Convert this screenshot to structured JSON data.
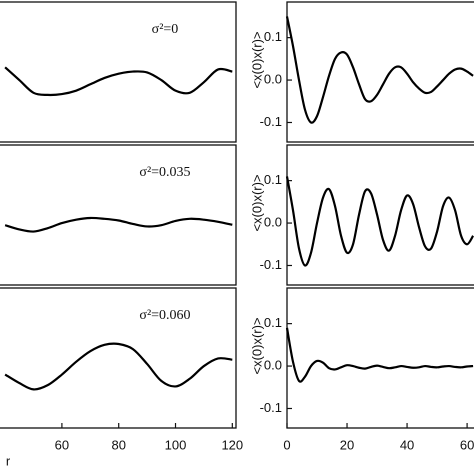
{
  "chart_data": [
    {
      "type": "line",
      "annotation": "σ²=0",
      "color": "#000000",
      "x": [
        40,
        45,
        50,
        55,
        60,
        65,
        70,
        75,
        80,
        85,
        90,
        95,
        100,
        105,
        110,
        115,
        120
      ],
      "values": [
        0.03,
        0.0,
        -0.03,
        -0.035,
        -0.033,
        -0.025,
        -0.01,
        0.005,
        0.015,
        0.02,
        0.018,
        0.0,
        -0.025,
        -0.03,
        -0.005,
        0.025,
        0.02
      ],
      "xlim": [
        38.2,
        121.3
      ],
      "ylim": [
        -0.146,
        0.184
      ]
    },
    {
      "type": "line",
      "ylabel": "<x(0)x(r)>",
      "color": "#000000",
      "x": [
        0,
        2,
        4,
        6,
        8,
        10,
        12,
        14,
        16,
        18,
        20,
        22,
        24,
        26,
        28,
        30,
        32,
        34,
        36,
        38,
        40,
        42,
        44,
        46,
        48,
        50,
        52,
        54,
        56,
        58,
        60,
        62
      ],
      "values": [
        0.15,
        0.08,
        0.0,
        -0.07,
        -0.1,
        -0.085,
        -0.04,
        0.01,
        0.05,
        0.065,
        0.06,
        0.03,
        -0.01,
        -0.045,
        -0.05,
        -0.035,
        -0.01,
        0.015,
        0.03,
        0.03,
        0.015,
        -0.005,
        -0.02,
        -0.03,
        -0.028,
        -0.015,
        0.0,
        0.015,
        0.025,
        0.027,
        0.02,
        0.01
      ],
      "xlim": [
        0,
        62.3
      ],
      "ylim": [
        -0.146,
        0.184
      ],
      "yticks": [
        0.1,
        {
          "value": 0,
          "label": "0.0"
        },
        -0.1
      ]
    },
    {
      "type": "line",
      "annotation": "σ²=0.035",
      "color": "#000000",
      "x": [
        40,
        45,
        50,
        55,
        60,
        65,
        70,
        75,
        80,
        85,
        90,
        95,
        100,
        105,
        110,
        115,
        120
      ],
      "values": [
        -0.005,
        -0.015,
        -0.02,
        -0.012,
        0.0,
        0.008,
        0.012,
        0.01,
        0.006,
        -0.002,
        -0.008,
        -0.005,
        0.005,
        0.01,
        0.008,
        0.003,
        -0.004
      ],
      "xlim": [
        38.2,
        121.3
      ],
      "ylim": [
        -0.146,
        0.184
      ]
    },
    {
      "type": "line",
      "ylabel": "<x(0)x(r)>",
      "color": "#000000",
      "x": [
        0,
        2,
        4,
        6,
        8,
        10,
        12,
        14,
        16,
        18,
        20,
        22,
        24,
        26,
        28,
        30,
        32,
        34,
        36,
        38,
        40,
        42,
        44,
        46,
        48,
        50,
        52,
        54,
        56,
        58,
        60,
        62
      ],
      "values": [
        0.11,
        0.03,
        -0.06,
        -0.1,
        -0.07,
        0.0,
        0.06,
        0.08,
        0.04,
        -0.03,
        -0.07,
        -0.05,
        0.02,
        0.075,
        0.07,
        0.02,
        -0.04,
        -0.065,
        -0.03,
        0.03,
        0.065,
        0.045,
        -0.01,
        -0.055,
        -0.06,
        -0.02,
        0.04,
        0.06,
        0.03,
        -0.03,
        -0.05,
        -0.03
      ],
      "xlim": [
        0,
        62.3
      ],
      "ylim": [
        -0.146,
        0.184
      ],
      "yticks": [
        0.1,
        {
          "value": 0,
          "label": "0.0"
        },
        -0.1
      ]
    },
    {
      "type": "line",
      "annotation": "σ²=0.060",
      "xlabel": "r",
      "color": "#000000",
      "x": [
        40,
        45,
        50,
        55,
        60,
        65,
        70,
        75,
        80,
        85,
        90,
        95,
        100,
        105,
        110,
        115,
        120
      ],
      "values": [
        -0.02,
        -0.04,
        -0.055,
        -0.045,
        -0.02,
        0.01,
        0.035,
        0.05,
        0.052,
        0.04,
        0.005,
        -0.035,
        -0.048,
        -0.03,
        0.0,
        0.018,
        0.015
      ],
      "xlim": [
        38.2,
        121.3
      ],
      "ylim": [
        -0.146,
        0.184
      ],
      "xticks": [
        60,
        80,
        100,
        120
      ]
    },
    {
      "type": "line",
      "ylabel": "<x(0)x(r)>",
      "color": "#000000",
      "x": [
        0,
        2,
        4,
        6,
        8,
        10,
        12,
        14,
        16,
        18,
        20,
        22,
        24,
        26,
        28,
        30,
        32,
        34,
        36,
        38,
        40,
        42,
        44,
        46,
        48,
        50,
        52,
        54,
        56,
        58,
        60,
        62
      ],
      "values": [
        0.09,
        0.01,
        -0.035,
        -0.025,
        0.0,
        0.012,
        0.008,
        -0.005,
        -0.008,
        -0.003,
        0.002,
        0.0,
        -0.004,
        -0.006,
        -0.002,
        0.001,
        -0.002,
        -0.005,
        -0.003,
        0.0,
        -0.002,
        -0.004,
        -0.003,
        0.0,
        -0.002,
        -0.003,
        -0.001,
        0.0,
        -0.002,
        -0.003,
        -0.001,
        0.0
      ],
      "xlim": [
        0,
        62.3
      ],
      "ylim": [
        -0.146,
        0.184
      ],
      "xticks": [
        0,
        20,
        40,
        60
      ],
      "yticks": [
        0.1,
        {
          "value": 0,
          "label": "0.0"
        },
        -0.1
      ]
    }
  ]
}
